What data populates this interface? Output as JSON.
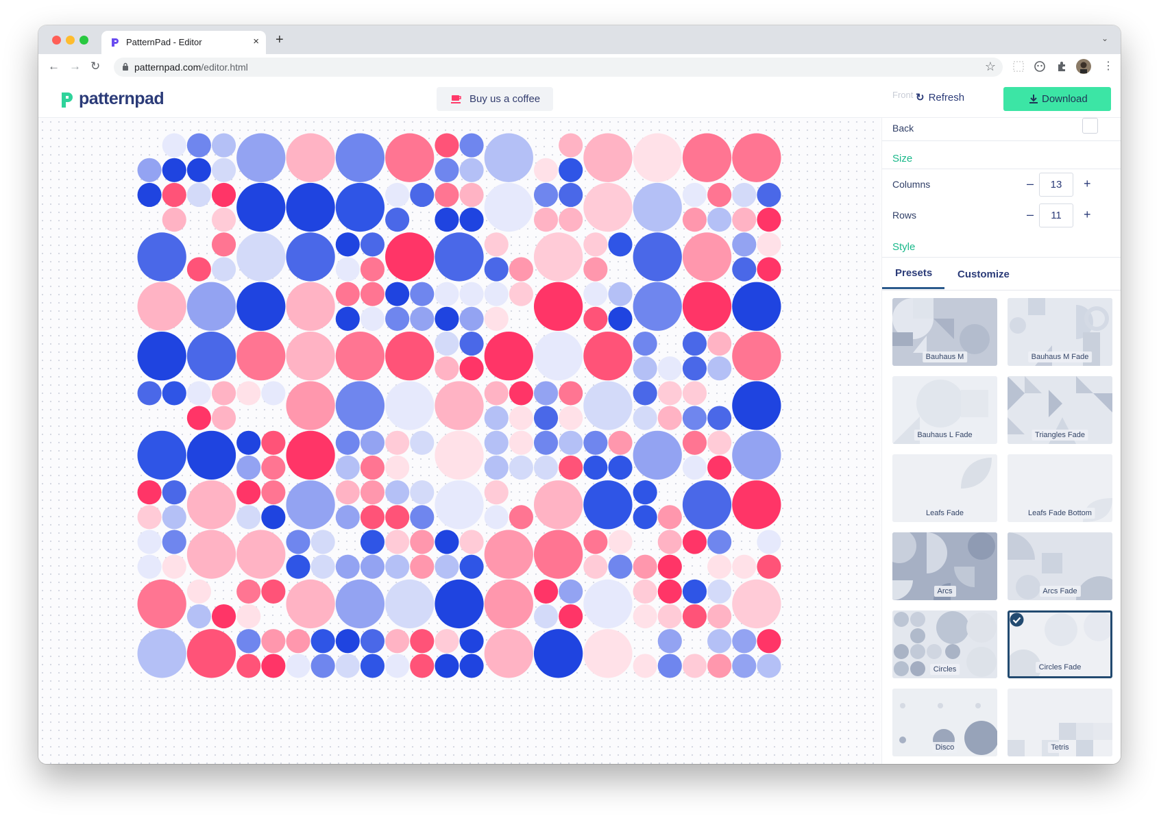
{
  "browser": {
    "tab_title": "PatternPad - Editor",
    "url_host": "patternpad.com",
    "url_path": "/editor.html"
  },
  "header": {
    "logo_text": "patternpad",
    "coffee_label": "Buy us a coffee",
    "front_label": "Front",
    "refresh_label": "Refresh",
    "download_label": "Download"
  },
  "sidebar": {
    "back_label": "Back",
    "size_heading": "Size",
    "columns_label": "Columns",
    "columns_value": "13",
    "rows_label": "Rows",
    "rows_value": "11",
    "style_heading": "Style",
    "tabs": [
      "Presets",
      "Customize"
    ],
    "presets": [
      {
        "label": "Bauhaus M"
      },
      {
        "label": "Bauhaus M Fade"
      },
      {
        "label": "Bauhaus L Fade"
      },
      {
        "label": "Triangles Fade"
      },
      {
        "label": "Leafs Fade"
      },
      {
        "label": "Leafs Fade Bottom"
      },
      {
        "label": "Arcs"
      },
      {
        "label": "Arcs Fade"
      },
      {
        "label": "Circles"
      },
      {
        "label": "Circles Fade",
        "selected": true
      },
      {
        "label": "Disco"
      },
      {
        "label": "Tetris"
      }
    ]
  },
  "colors": {
    "accent_green": "#3ce5a5",
    "brand_navy": "#2b3b78",
    "section_heading": "#19b88a",
    "pattern_blue": "#2249e0",
    "pattern_pink": "#ff3a6a"
  }
}
